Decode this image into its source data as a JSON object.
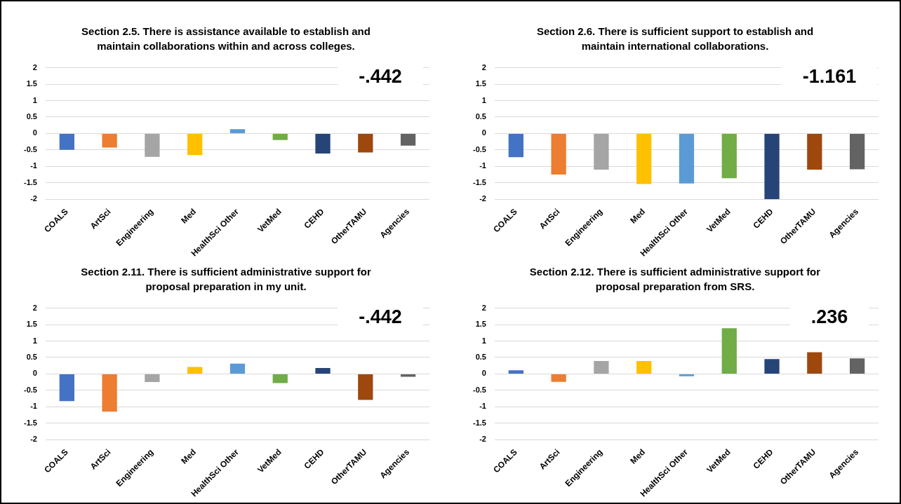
{
  "chart_data": [
    {
      "type": "bar",
      "title": "Section 2.5. There is assistance available to establish and maintain collaborations within and across colleges.",
      "categories": [
        "COALS",
        "ArtSci",
        "Engineering",
        "Med",
        "HealthSci Other",
        "VetMed",
        "CEHD",
        "OtherTAMU",
        "Agencies"
      ],
      "values": [
        -0.5,
        -0.43,
        -0.71,
        -0.66,
        0.13,
        -0.2,
        -0.61,
        -0.58,
        -0.37
      ],
      "colors": [
        "#4472c4",
        "#ed7d31",
        "#a5a5a5",
        "#ffc000",
        "#5b9bd5",
        "#70ad47",
        "#264478",
        "#9e480e",
        "#636363"
      ],
      "ylim": [
        -2,
        2
      ],
      "yticks": [
        -2,
        -1.5,
        -1,
        -0.5,
        0,
        0.5,
        1,
        1.5,
        2
      ],
      "grid": "y",
      "legend": false,
      "annotations": [
        "-.442"
      ]
    },
    {
      "type": "bar",
      "title": "Section 2.6. There is sufficient support to establish and maintain international collaborations.",
      "categories": [
        "COALS",
        "ArtSci",
        "Engineering",
        "Med",
        "HealthSci Other",
        "VetMed",
        "CEHD",
        "OtherTAMU",
        "Agencies"
      ],
      "values": [
        -0.72,
        -1.25,
        -1.1,
        -1.54,
        -1.52,
        -1.36,
        -2,
        -1.1,
        -1.09
      ],
      "colors": [
        "#4472c4",
        "#ed7d31",
        "#a5a5a5",
        "#ffc000",
        "#5b9bd5",
        "#70ad47",
        "#264478",
        "#9e480e",
        "#636363"
      ],
      "ylim": [
        -2,
        2
      ],
      "yticks": [
        -2,
        -1.5,
        -1,
        -0.5,
        0,
        0.5,
        1,
        1.5,
        2
      ],
      "grid": "y",
      "legend": false,
      "annotations": [
        "-1.161"
      ]
    },
    {
      "type": "bar",
      "title": "Section 2.11. There is sufficient administrative support for proposal preparation in my unit.",
      "categories": [
        "COALS",
        "ArtSci",
        "Engineering",
        "Med",
        "HealthSci Other",
        "VetMed",
        "CEHD",
        "OtherTAMU",
        "Agencies"
      ],
      "values": [
        -0.83,
        -1.15,
        -0.25,
        0.21,
        0.31,
        -0.28,
        0.18,
        -0.79,
        -0.09
      ],
      "colors": [
        "#4472c4",
        "#ed7d31",
        "#a5a5a5",
        "#ffc000",
        "#5b9bd5",
        "#70ad47",
        "#264478",
        "#9e480e",
        "#636363"
      ],
      "ylim": [
        -2,
        2
      ],
      "yticks": [
        -2,
        -1.5,
        -1,
        -0.5,
        0,
        0.5,
        1,
        1.5,
        2
      ],
      "grid": "y",
      "legend": false,
      "annotations": [
        "-.442"
      ]
    },
    {
      "type": "bar",
      "title": "Section 2.12. There is sufficient administrative support for proposal preparation from SRS.",
      "categories": [
        "COALS",
        "ArtSci",
        "Engineering",
        "Med",
        "HealthSci Other",
        "VetMed",
        "CEHD",
        "OtherTAMU",
        "Agencies"
      ],
      "values": [
        0.11,
        -0.24,
        0.39,
        0.39,
        -0.07,
        1.39,
        0.45,
        0.66,
        0.47
      ],
      "colors": [
        "#4472c4",
        "#ed7d31",
        "#a5a5a5",
        "#ffc000",
        "#5b9bd5",
        "#70ad47",
        "#264478",
        "#9e480e",
        "#636363"
      ],
      "ylim": [
        -2,
        2
      ],
      "yticks": [
        -2,
        -1.5,
        -1,
        -0.5,
        0,
        0.5,
        1,
        1.5,
        2
      ],
      "grid": "y",
      "legend": false,
      "annotations": [
        ".236"
      ]
    }
  ]
}
